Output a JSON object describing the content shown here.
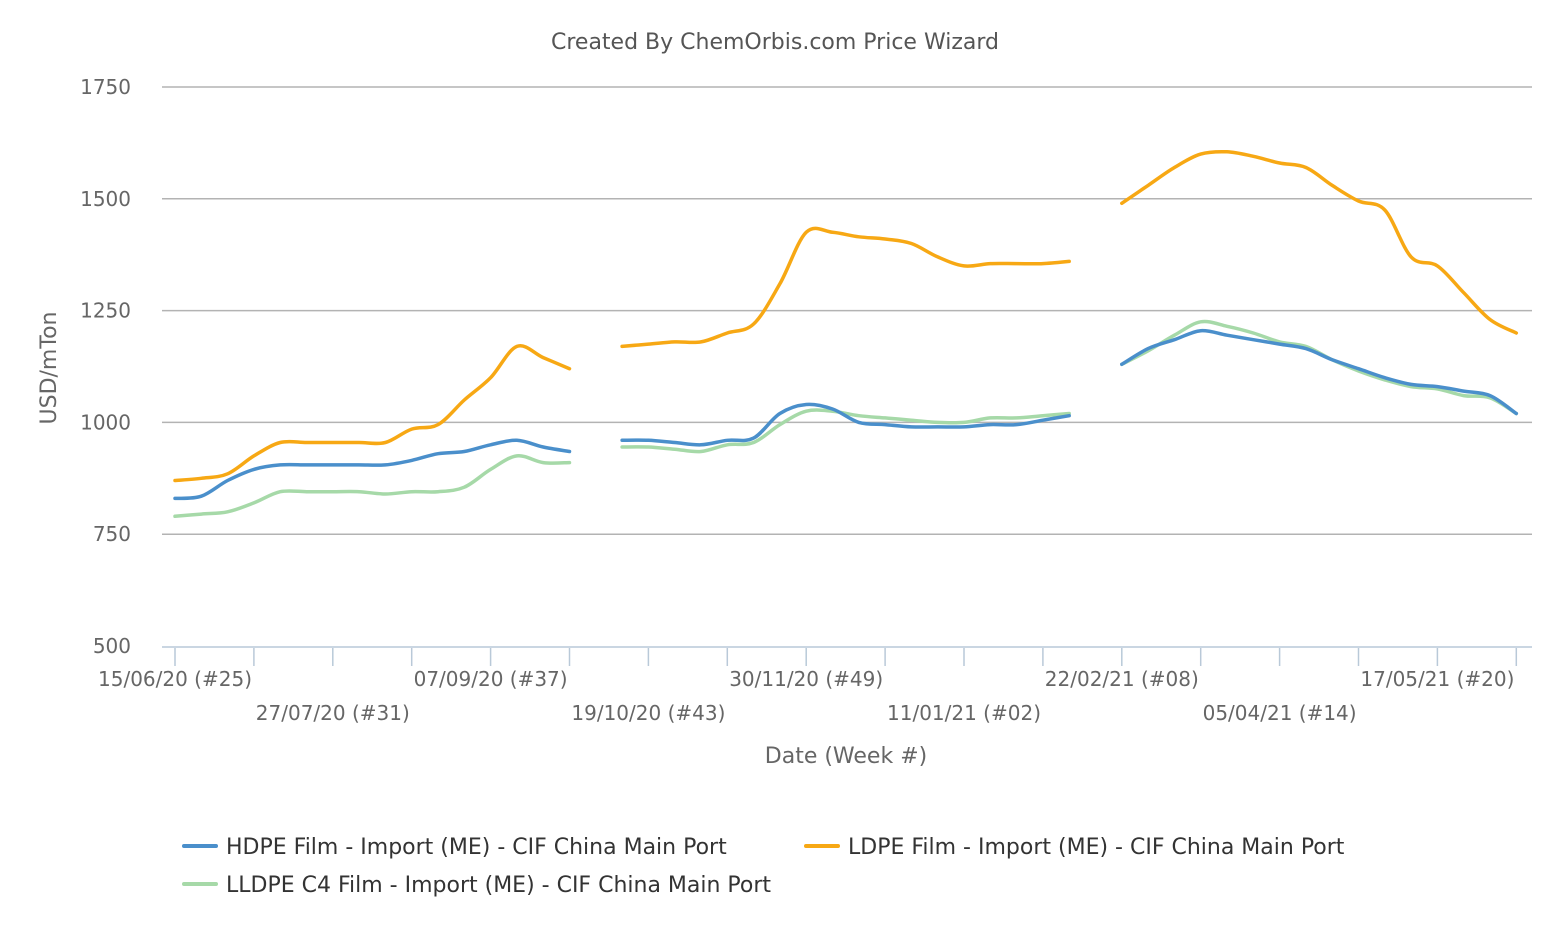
{
  "chart_data": {
    "type": "line",
    "title": "Created By ChemOrbis.com Price Wizard",
    "xlabel": "Date (Week #)",
    "ylabel": "USD/mTon",
    "ylim": [
      500,
      1750
    ],
    "yticks": [
      500,
      750,
      1000,
      1250,
      1500,
      1750
    ],
    "grid": true,
    "legend_position": "bottom",
    "xticks": [
      {
        "week": 0,
        "label": "15/06/20 (#25)"
      },
      {
        "week": 6,
        "label": "27/07/20 (#31)"
      },
      {
        "week": 12,
        "label": "07/09/20 (#37)"
      },
      {
        "week": 18,
        "label": "19/10/20 (#43)"
      },
      {
        "week": 24,
        "label": "30/11/20 (#49)"
      },
      {
        "week": 30,
        "label": "11/01/21 (#02)"
      },
      {
        "week": 36,
        "label": "22/02/21 (#08)"
      },
      {
        "week": 42,
        "label": "05/04/21 (#14)"
      },
      {
        "week": 48,
        "label": "17/05/21 (#20)"
      }
    ],
    "series": [
      {
        "name": "HDPE Film - Import (ME) - CIF China Main Port",
        "color": "#4a8fcb",
        "segments": [
          [
            [
              0,
              830
            ],
            [
              1,
              835
            ],
            [
              2,
              870
            ],
            [
              3,
              895
            ],
            [
              4,
              905
            ],
            [
              5,
              905
            ],
            [
              6,
              905
            ],
            [
              7,
              905
            ],
            [
              8,
              905
            ],
            [
              9,
              915
            ],
            [
              10,
              930
            ],
            [
              11,
              935
            ],
            [
              12,
              950
            ],
            [
              13,
              960
            ],
            [
              14,
              945
            ],
            [
              15,
              935
            ]
          ],
          [
            [
              17,
              960
            ],
            [
              18,
              960
            ],
            [
              19,
              955
            ],
            [
              20,
              950
            ],
            [
              21,
              960
            ],
            [
              22,
              965
            ],
            [
              23,
              1020
            ],
            [
              24,
              1040
            ],
            [
              25,
              1030
            ],
            [
              26,
              1000
            ],
            [
              27,
              995
            ],
            [
              28,
              990
            ],
            [
              29,
              990
            ],
            [
              30,
              990
            ],
            [
              31,
              995
            ],
            [
              32,
              995
            ],
            [
              33,
              1005
            ],
            [
              34,
              1015
            ]
          ],
          [
            [
              36,
              1130
            ],
            [
              37,
              1165
            ],
            [
              38,
              1185
            ],
            [
              39,
              1205
            ],
            [
              40,
              1195
            ],
            [
              41,
              1185
            ],
            [
              42,
              1175
            ],
            [
              43,
              1165
            ],
            [
              44,
              1140
            ],
            [
              45,
              1120
            ],
            [
              46,
              1100
            ],
            [
              47,
              1085
            ],
            [
              48,
              1080
            ],
            [
              49,
              1070
            ],
            [
              50,
              1060
            ],
            [
              51,
              1020
            ]
          ]
        ]
      },
      {
        "name": "LDPE Film - Import (ME) - CIF China Main Port",
        "color": "#f7a814",
        "segments": [
          [
            [
              0,
              870
            ],
            [
              1,
              875
            ],
            [
              2,
              885
            ],
            [
              3,
              925
            ],
            [
              4,
              955
            ],
            [
              5,
              955
            ],
            [
              6,
              955
            ],
            [
              7,
              955
            ],
            [
              8,
              955
            ],
            [
              9,
              985
            ],
            [
              10,
              995
            ],
            [
              11,
              1050
            ],
            [
              12,
              1100
            ],
            [
              13,
              1170
            ],
            [
              14,
              1145
            ],
            [
              15,
              1120
            ]
          ],
          [
            [
              17,
              1170
            ],
            [
              18,
              1175
            ],
            [
              19,
              1180
            ],
            [
              20,
              1180
            ],
            [
              21,
              1200
            ],
            [
              22,
              1220
            ],
            [
              23,
              1310
            ],
            [
              24,
              1425
            ],
            [
              25,
              1425
            ],
            [
              26,
              1415
            ],
            [
              27,
              1410
            ],
            [
              28,
              1400
            ],
            [
              29,
              1370
            ],
            [
              30,
              1350
            ],
            [
              31,
              1355
            ],
            [
              32,
              1355
            ],
            [
              33,
              1355
            ],
            [
              34,
              1360
            ]
          ],
          [
            [
              36,
              1490
            ],
            [
              37,
              1530
            ],
            [
              38,
              1570
            ],
            [
              39,
              1600
            ],
            [
              40,
              1605
            ],
            [
              41,
              1595
            ],
            [
              42,
              1580
            ],
            [
              43,
              1570
            ],
            [
              44,
              1530
            ],
            [
              45,
              1495
            ],
            [
              46,
              1475
            ],
            [
              47,
              1370
            ],
            [
              48,
              1350
            ],
            [
              49,
              1290
            ],
            [
              50,
              1230
            ],
            [
              51,
              1200
            ]
          ]
        ]
      },
      {
        "name": "LLDPE C4 Film - Import (ME) - CIF China Main Port",
        "color": "#a6d9a8",
        "segments": [
          [
            [
              0,
              790
            ],
            [
              1,
              795
            ],
            [
              2,
              800
            ],
            [
              3,
              820
            ],
            [
              4,
              845
            ],
            [
              5,
              845
            ],
            [
              6,
              845
            ],
            [
              7,
              845
            ],
            [
              8,
              840
            ],
            [
              9,
              845
            ],
            [
              10,
              845
            ],
            [
              11,
              855
            ],
            [
              12,
              895
            ],
            [
              13,
              925
            ],
            [
              14,
              910
            ],
            [
              15,
              910
            ]
          ],
          [
            [
              17,
              945
            ],
            [
              18,
              945
            ],
            [
              19,
              940
            ],
            [
              20,
              935
            ],
            [
              21,
              950
            ],
            [
              22,
              955
            ],
            [
              23,
              995
            ],
            [
              24,
              1025
            ],
            [
              25,
              1025
            ],
            [
              26,
              1015
            ],
            [
              27,
              1010
            ],
            [
              28,
              1005
            ],
            [
              29,
              1000
            ],
            [
              30,
              1000
            ],
            [
              31,
              1010
            ],
            [
              32,
              1010
            ],
            [
              33,
              1015
            ],
            [
              34,
              1020
            ]
          ],
          [
            [
              36,
              1130
            ],
            [
              37,
              1160
            ],
            [
              38,
              1195
            ],
            [
              39,
              1225
            ],
            [
              40,
              1215
            ],
            [
              41,
              1200
            ],
            [
              42,
              1180
            ],
            [
              43,
              1170
            ],
            [
              44,
              1140
            ],
            [
              45,
              1115
            ],
            [
              46,
              1095
            ],
            [
              47,
              1080
            ],
            [
              48,
              1075
            ],
            [
              49,
              1060
            ],
            [
              50,
              1055
            ],
            [
              51,
              1020
            ]
          ]
        ]
      }
    ]
  }
}
